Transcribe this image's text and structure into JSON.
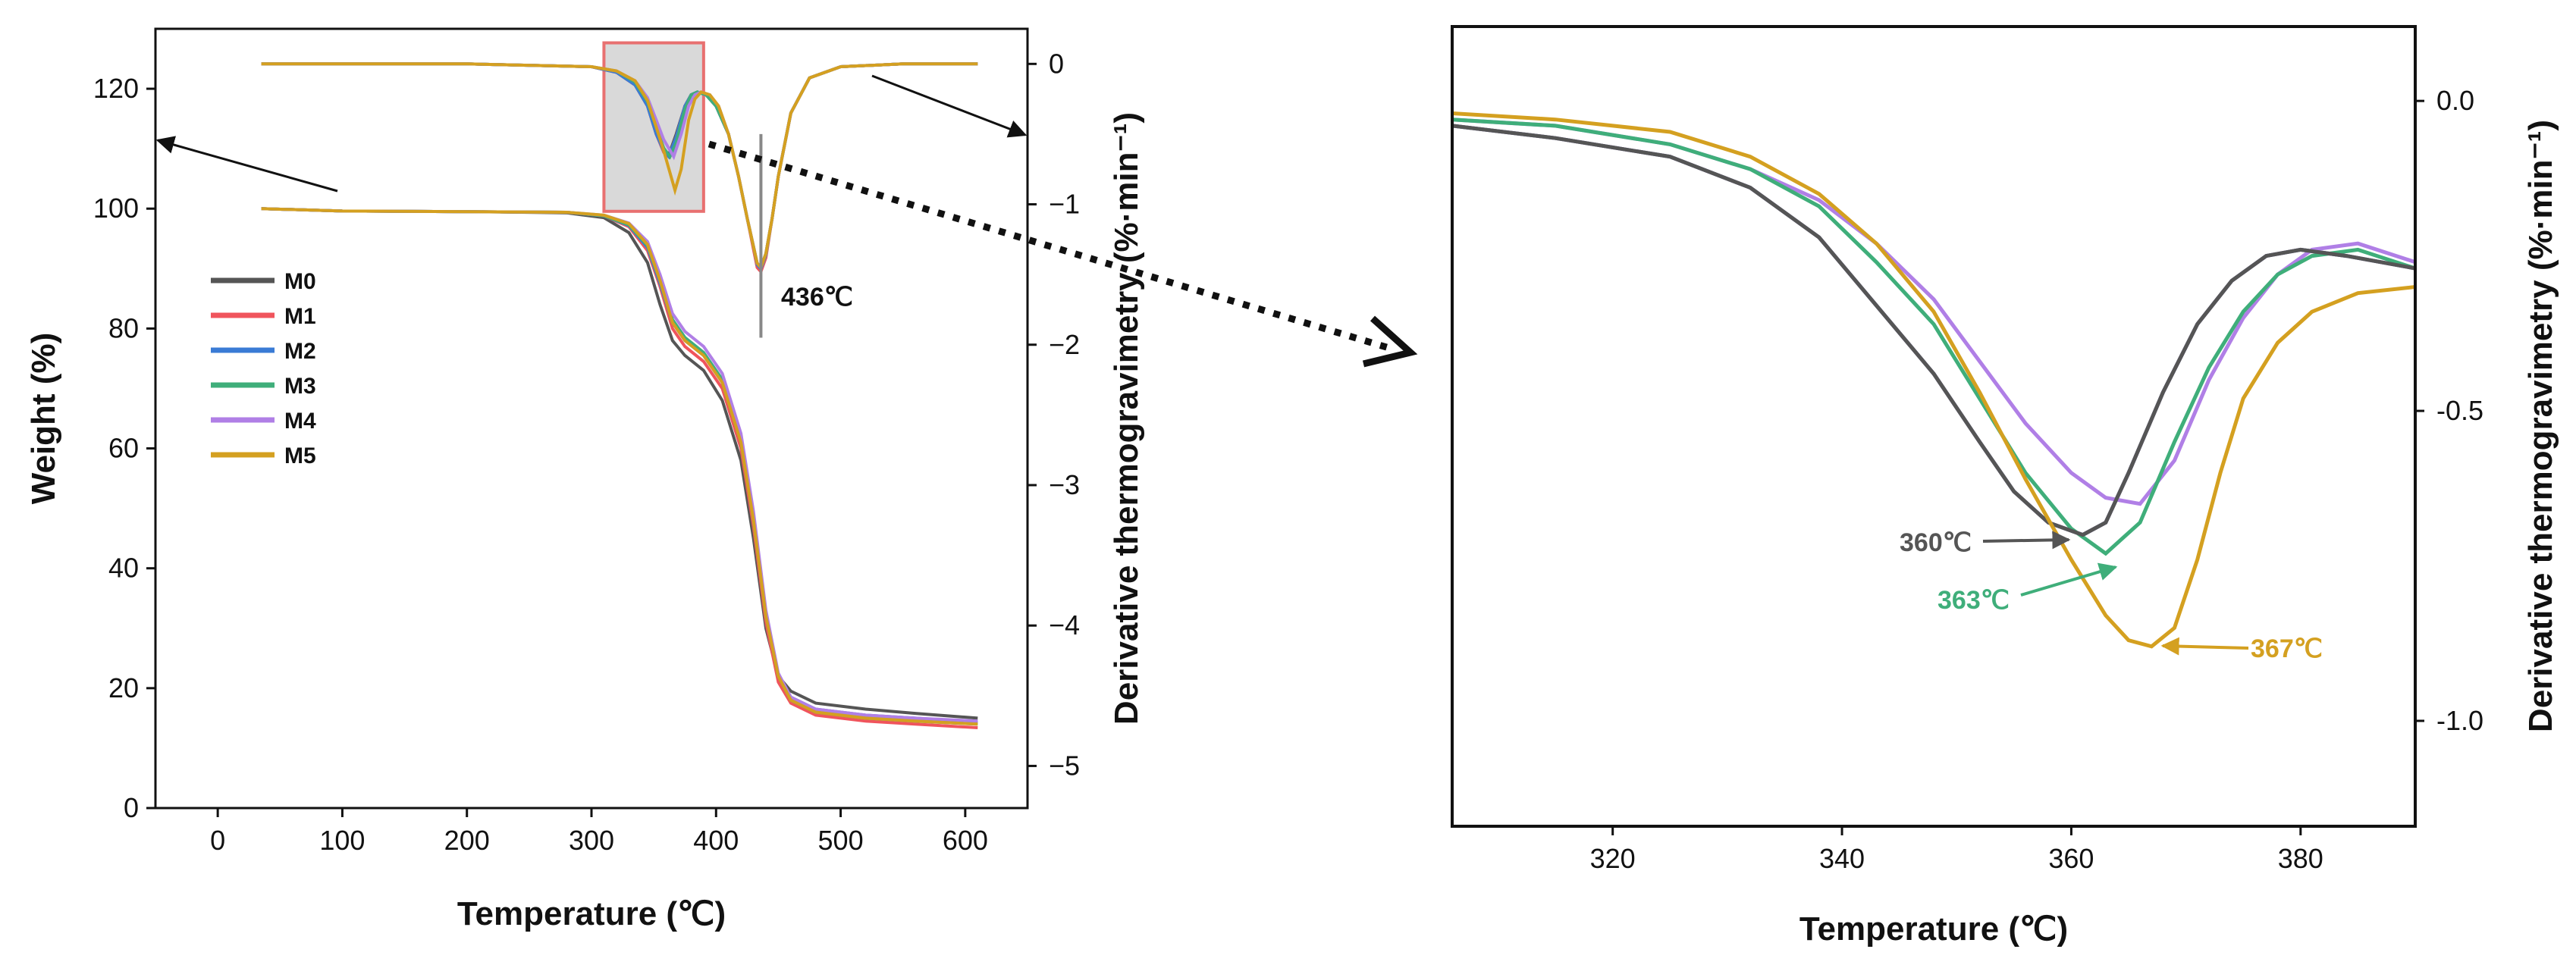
{
  "chart_data": [
    {
      "type": "line",
      "title": "",
      "xlabel": "Temperature (℃)",
      "ylabel": "Weight (%)",
      "y2label": "Derivative thermogravimetry (%·min⁻¹)",
      "xlim": [
        -50,
        650
      ],
      "ylim": [
        0,
        130
      ],
      "y2lim": [
        -5.3,
        0.25
      ],
      "x_ticks": [
        0,
        100,
        200,
        300,
        400,
        500,
        600
      ],
      "y_ticks": [
        0,
        20,
        40,
        60,
        80,
        100,
        120
      ],
      "y2_ticks": [
        0,
        -1,
        -2,
        -3,
        -4,
        -5
      ],
      "legend": [
        "M0",
        "M1",
        "M2",
        "M3",
        "M4",
        "M5"
      ],
      "colors": {
        "M0": "#555555",
        "M1": "#f0545c",
        "M2": "#3a7bd5",
        "M3": "#3fae7a",
        "M4": "#b07fe6",
        "M5": "#d4a020",
        "highlight_box": "#e87070",
        "highlight_fill": "#d9d9d9"
      },
      "tga_series": [
        {
          "name": "M0",
          "x": [
            35,
            100,
            200,
            280,
            310,
            330,
            345,
            355,
            365,
            375,
            390,
            405,
            420,
            430,
            440,
            450,
            460,
            480,
            520,
            560,
            610
          ],
          "values": [
            100,
            99.6,
            99.5,
            99.3,
            98.5,
            96,
            91,
            84,
            78,
            75.5,
            73,
            68,
            58,
            45,
            30,
            22,
            19.5,
            17.5,
            16.5,
            15.8,
            15
          ]
        },
        {
          "name": "M1",
          "x": [
            35,
            100,
            200,
            280,
            310,
            330,
            345,
            355,
            365,
            375,
            390,
            405,
            420,
            430,
            440,
            450,
            460,
            480,
            520,
            560,
            610
          ],
          "values": [
            100,
            99.6,
            99.5,
            99.4,
            98.8,
            97,
            93,
            87,
            80,
            77,
            74.5,
            70,
            60,
            47,
            31,
            21,
            17.5,
            15.5,
            14.5,
            14,
            13.4
          ]
        },
        {
          "name": "M2",
          "x": [
            35,
            100,
            200,
            280,
            310,
            330,
            345,
            355,
            365,
            375,
            390,
            405,
            420,
            430,
            440,
            450,
            460,
            480,
            520,
            560,
            610
          ],
          "values": [
            100,
            99.6,
            99.5,
            99.4,
            98.8,
            97.2,
            93.5,
            87.5,
            81,
            78,
            75.5,
            71,
            61,
            48,
            32,
            22,
            18.5,
            16.5,
            15.5,
            15,
            14.3
          ]
        },
        {
          "name": "M3",
          "x": [
            35,
            100,
            200,
            280,
            310,
            330,
            345,
            355,
            365,
            375,
            390,
            405,
            420,
            430,
            440,
            450,
            460,
            480,
            520,
            560,
            610
          ],
          "values": [
            100,
            99.6,
            99.5,
            99.4,
            98.8,
            97.3,
            93.8,
            88,
            81.5,
            78.5,
            76,
            71.5,
            61.5,
            48.5,
            32.5,
            22,
            18,
            16,
            15,
            14.5,
            14
          ]
        },
        {
          "name": "M4",
          "x": [
            35,
            100,
            200,
            280,
            310,
            330,
            345,
            355,
            365,
            375,
            390,
            405,
            420,
            430,
            440,
            450,
            460,
            480,
            520,
            560,
            610
          ],
          "values": [
            100,
            99.6,
            99.5,
            99.4,
            98.9,
            97.6,
            94.5,
            89,
            82.5,
            79.5,
            77,
            72.5,
            62.5,
            49.5,
            33,
            22.5,
            18.5,
            16.5,
            15.5,
            15,
            14.5
          ]
        },
        {
          "name": "M5",
          "x": [
            35,
            100,
            200,
            280,
            310,
            330,
            345,
            355,
            365,
            375,
            390,
            405,
            420,
            430,
            440,
            450,
            460,
            480,
            520,
            560,
            610
          ],
          "values": [
            100,
            99.6,
            99.5,
            99.4,
            98.9,
            97.5,
            94,
            88,
            81,
            78,
            75.5,
            71,
            61,
            48,
            32,
            22,
            18,
            16,
            15,
            14.5,
            14
          ]
        }
      ],
      "dtg_series": [
        {
          "name": "M0",
          "x": [
            35,
            200,
            300,
            320,
            335,
            345,
            352,
            358,
            362,
            368,
            375,
            380,
            385,
            392,
            400,
            410,
            418,
            425,
            430,
            433,
            436,
            440,
            445,
            450,
            460,
            475,
            500,
            550,
            610
          ],
          "values": [
            0,
            0,
            -0.02,
            -0.06,
            -0.15,
            -0.3,
            -0.5,
            -0.62,
            -0.65,
            -0.5,
            -0.3,
            -0.22,
            -0.2,
            -0.22,
            -0.3,
            -0.5,
            -0.8,
            -1.1,
            -1.3,
            -1.42,
            -1.45,
            -1.35,
            -1.1,
            -0.8,
            -0.35,
            -0.1,
            -0.02,
            0,
            0
          ]
        },
        {
          "name": "M1",
          "x": [
            35,
            200,
            300,
            320,
            335,
            345,
            352,
            358,
            362,
            368,
            375,
            380,
            385,
            392,
            400,
            410,
            418,
            425,
            430,
            433,
            436,
            440,
            445,
            450,
            460,
            475,
            500,
            550,
            610
          ],
          "values": [
            0,
            0,
            -0.02,
            -0.06,
            -0.15,
            -0.3,
            -0.5,
            -0.63,
            -0.66,
            -0.52,
            -0.3,
            -0.22,
            -0.2,
            -0.22,
            -0.3,
            -0.5,
            -0.8,
            -1.1,
            -1.32,
            -1.45,
            -1.48,
            -1.38,
            -1.1,
            -0.8,
            -0.35,
            -0.1,
            -0.02,
            0,
            0
          ]
        },
        {
          "name": "M2",
          "x": [
            35,
            200,
            300,
            320,
            335,
            345,
            352,
            358,
            362,
            368,
            375,
            380,
            385,
            392,
            400,
            410,
            418,
            425,
            430,
            433,
            436,
            440,
            445,
            450,
            460,
            475,
            500,
            550,
            610
          ],
          "values": [
            0,
            0,
            -0.02,
            -0.06,
            -0.15,
            -0.3,
            -0.5,
            -0.62,
            -0.66,
            -0.52,
            -0.3,
            -0.22,
            -0.2,
            -0.22,
            -0.3,
            -0.5,
            -0.8,
            -1.1,
            -1.3,
            -1.43,
            -1.46,
            -1.36,
            -1.1,
            -0.8,
            -0.35,
            -0.1,
            -0.02,
            0,
            0
          ]
        },
        {
          "name": "M3",
          "x": [
            35,
            200,
            300,
            320,
            335,
            345,
            352,
            358,
            363,
            368,
            375,
            380,
            385,
            392,
            400,
            410,
            418,
            425,
            430,
            433,
            436,
            440,
            445,
            450,
            460,
            475,
            500,
            550,
            610
          ],
          "values": [
            0,
            0,
            -0.02,
            -0.05,
            -0.13,
            -0.27,
            -0.45,
            -0.6,
            -0.66,
            -0.56,
            -0.32,
            -0.22,
            -0.2,
            -0.22,
            -0.3,
            -0.5,
            -0.8,
            -1.1,
            -1.3,
            -1.42,
            -1.45,
            -1.35,
            -1.1,
            -0.8,
            -0.35,
            -0.1,
            -0.02,
            0,
            0
          ]
        },
        {
          "name": "M4",
          "x": [
            35,
            200,
            300,
            320,
            335,
            345,
            352,
            358,
            366,
            372,
            378,
            383,
            388,
            395,
            402,
            410,
            418,
            425,
            430,
            433,
            436,
            440,
            445,
            450,
            460,
            475,
            500,
            550,
            610
          ],
          "values": [
            0,
            0,
            -0.02,
            -0.05,
            -0.12,
            -0.24,
            -0.4,
            -0.54,
            -0.66,
            -0.5,
            -0.3,
            -0.22,
            -0.2,
            -0.22,
            -0.3,
            -0.5,
            -0.8,
            -1.1,
            -1.3,
            -1.42,
            -1.45,
            -1.35,
            -1.1,
            -0.8,
            -0.35,
            -0.1,
            -0.02,
            0,
            0
          ]
        },
        {
          "name": "M5",
          "x": [
            35,
            200,
            300,
            320,
            335,
            345,
            352,
            358,
            367,
            372,
            378,
            383,
            388,
            395,
            402,
            410,
            418,
            425,
            430,
            433,
            436,
            440,
            445,
            450,
            460,
            475,
            500,
            550,
            610
          ],
          "values": [
            0,
            0,
            -0.02,
            -0.05,
            -0.12,
            -0.26,
            -0.45,
            -0.62,
            -0.9,
            -0.75,
            -0.4,
            -0.25,
            -0.2,
            -0.22,
            -0.3,
            -0.5,
            -0.8,
            -1.1,
            -1.3,
            -1.42,
            -1.45,
            -1.35,
            -1.1,
            -0.8,
            -0.35,
            -0.1,
            -0.02,
            0,
            0
          ]
        }
      ],
      "annotations": [
        {
          "text": "436℃",
          "x": 436,
          "y2": -1.45
        }
      ],
      "highlight_region": {
        "x": [
          310,
          390
        ],
        "y2": [
          -1.05,
          0.15
        ]
      }
    },
    {
      "type": "line",
      "title": "",
      "xlabel": "Temperature (℃)",
      "ylabel": "Derivative thermogravimetry (%·min⁻¹)",
      "xlim": [
        306,
        390
      ],
      "ylim": [
        -1.17,
        0.12
      ],
      "x_ticks": [
        320,
        340,
        360,
        380
      ],
      "y_ticks": [
        0.0,
        -0.5,
        -1.0
      ],
      "y_tick_labels": [
        "0.0",
        "-0.5",
        "-1.0"
      ],
      "series": [
        {
          "name": "M0",
          "x": [
            306,
            315,
            325,
            332,
            338,
            343,
            348,
            352,
            355,
            358,
            361,
            363,
            365,
            368,
            371,
            374,
            377,
            380,
            384,
            390
          ],
          "values": [
            -0.04,
            -0.06,
            -0.09,
            -0.14,
            -0.22,
            -0.33,
            -0.44,
            -0.55,
            -0.63,
            -0.68,
            -0.7,
            -0.68,
            -0.6,
            -0.47,
            -0.36,
            -0.29,
            -0.25,
            -0.24,
            -0.25,
            -0.27
          ]
        },
        {
          "name": "M1",
          "x": [
            306,
            315,
            325,
            332,
            338,
            343,
            348,
            352,
            355,
            358,
            361,
            363,
            365,
            368,
            371,
            374,
            377,
            380,
            384,
            390
          ],
          "values": [
            -0.04,
            -0.06,
            -0.09,
            -0.14,
            -0.22,
            -0.33,
            -0.44,
            -0.55,
            -0.63,
            -0.68,
            -0.7,
            -0.68,
            -0.6,
            -0.47,
            -0.36,
            -0.29,
            -0.25,
            -0.24,
            -0.25,
            -0.27
          ]
        },
        {
          "name": "M2",
          "x": [
            306,
            315,
            325,
            332,
            338,
            343,
            348,
            352,
            355,
            358,
            361,
            363,
            365,
            368,
            371,
            374,
            377,
            380,
            384,
            390
          ],
          "values": [
            -0.04,
            -0.06,
            -0.09,
            -0.14,
            -0.22,
            -0.33,
            -0.44,
            -0.55,
            -0.63,
            -0.68,
            -0.7,
            -0.68,
            -0.6,
            -0.47,
            -0.36,
            -0.29,
            -0.25,
            -0.24,
            -0.25,
            -0.27
          ]
        },
        {
          "name": "M3",
          "x": [
            306,
            315,
            325,
            332,
            338,
            343,
            348,
            352,
            356,
            360,
            363,
            366,
            369,
            372,
            375,
            378,
            381,
            385,
            390
          ],
          "values": [
            -0.03,
            -0.04,
            -0.07,
            -0.11,
            -0.17,
            -0.26,
            -0.36,
            -0.48,
            -0.6,
            -0.69,
            -0.73,
            -0.68,
            -0.55,
            -0.43,
            -0.34,
            -0.28,
            -0.25,
            -0.24,
            -0.27
          ]
        },
        {
          "name": "M4",
          "x": [
            306,
            315,
            325,
            332,
            338,
            343,
            348,
            352,
            356,
            360,
            363,
            366,
            369,
            372,
            375,
            378,
            381,
            385,
            390
          ],
          "values": [
            -0.03,
            -0.04,
            -0.07,
            -0.11,
            -0.16,
            -0.23,
            -0.32,
            -0.42,
            -0.52,
            -0.6,
            -0.64,
            -0.65,
            -0.58,
            -0.45,
            -0.35,
            -0.28,
            -0.24,
            -0.23,
            -0.26
          ]
        },
        {
          "name": "M5",
          "x": [
            306,
            315,
            325,
            332,
            338,
            343,
            348,
            352,
            356,
            360,
            363,
            365,
            367,
            369,
            371,
            373,
            375,
            378,
            381,
            385,
            390
          ],
          "values": [
            -0.02,
            -0.03,
            -0.05,
            -0.09,
            -0.15,
            -0.23,
            -0.34,
            -0.47,
            -0.61,
            -0.74,
            -0.83,
            -0.87,
            -0.88,
            -0.85,
            -0.74,
            -0.6,
            -0.48,
            -0.39,
            -0.34,
            -0.31,
            -0.3
          ]
        }
      ],
      "annotations": [
        {
          "text": "360℃",
          "series": "M0",
          "x": 360,
          "y": -0.7
        },
        {
          "text": "363℃",
          "series": "M3",
          "x": 363,
          "y": -0.73
        },
        {
          "text": "367℃",
          "series": "M5",
          "x": 367,
          "y": -0.88
        }
      ]
    }
  ]
}
